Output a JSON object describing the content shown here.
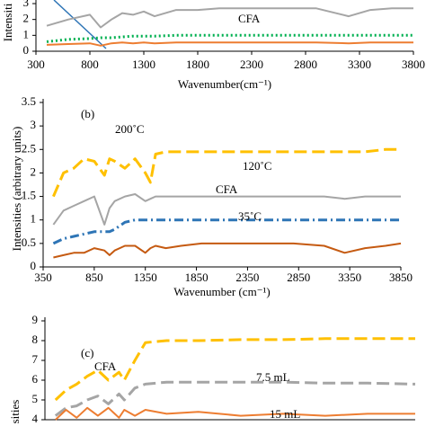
{
  "chart_data": [
    {
      "type": "line",
      "label": "Intensiti",
      "xlabel": "Wavenumber(cm⁻¹)",
      "annotations": [
        "CFA"
      ],
      "xlim": [
        300,
        3800
      ],
      "xticks": [
        300,
        800,
        1300,
        1800,
        2300,
        2800,
        3300,
        3800
      ],
      "ylim": [
        0,
        3
      ],
      "yticks": [
        0,
        1,
        2,
        3
      ],
      "x": [
        400,
        600,
        800,
        900,
        1000,
        1100,
        1200,
        1300,
        1400,
        1600,
        1800,
        2000,
        2300,
        2600,
        2900,
        3200,
        3400,
        3600,
        3800
      ],
      "series": [
        {
          "color": "#a5a5a5",
          "style": "solid",
          "values": [
            1.6,
            2.0,
            2.3,
            1.5,
            2.0,
            2.4,
            2.3,
            2.5,
            2.2,
            2.6,
            2.6,
            2.7,
            2.7,
            2.7,
            2.7,
            2.2,
            2.6,
            2.7,
            2.7
          ]
        },
        {
          "color": "#00b050",
          "style": "dotted",
          "values": [
            0.6,
            0.75,
            0.8,
            0.85,
            0.85,
            0.9,
            0.95,
            0.95,
            0.95,
            1.0,
            1.0,
            1.0,
            1.0,
            1.0,
            1.0,
            1.0,
            1.0,
            1.0,
            1.0
          ]
        },
        {
          "color": "#ed7d31",
          "style": "solid",
          "values": [
            0.4,
            0.45,
            0.5,
            0.35,
            0.5,
            0.55,
            0.5,
            0.55,
            0.5,
            0.55,
            0.55,
            0.55,
            0.55,
            0.55,
            0.55,
            0.5,
            0.55,
            0.55,
            0.55
          ]
        }
      ]
    },
    {
      "type": "line",
      "label": "(b)",
      "ylabel": "Intensities (arbitrary units)",
      "xlabel": "Wavenumber (cm⁻¹)",
      "annotations": [
        "200˚C",
        "120˚C",
        "CFA",
        "35˚C"
      ],
      "xlim": [
        350,
        3850
      ],
      "xticks": [
        350,
        850,
        1350,
        1850,
        2350,
        2850,
        3350,
        3850
      ],
      "ylim": [
        0,
        3.5
      ],
      "yticks": [
        0,
        0.5,
        1,
        1.5,
        2,
        2.5,
        3,
        3.5
      ],
      "x": [
        450,
        550,
        650,
        750,
        850,
        950,
        1000,
        1050,
        1150,
        1250,
        1350,
        1400,
        1450,
        1550,
        1700,
        1900,
        2200,
        2500,
        2800,
        3100,
        3300,
        3500,
        3700,
        3850
      ],
      "series": [
        {
          "color": "#ffc000",
          "style": "dashed",
          "values": [
            1.5,
            2.0,
            2.1,
            2.3,
            2.25,
            1.95,
            2.3,
            2.25,
            2.1,
            2.3,
            2.0,
            1.8,
            2.4,
            2.45,
            2.45,
            2.45,
            2.45,
            2.45,
            2.45,
            2.45,
            2.45,
            2.45,
            2.5,
            2.5
          ]
        },
        {
          "color": "#a5a5a5",
          "style": "solid",
          "values": [
            0.9,
            1.2,
            1.3,
            1.4,
            1.5,
            0.9,
            1.25,
            1.4,
            1.5,
            1.55,
            1.4,
            1.45,
            1.5,
            1.5,
            1.5,
            1.5,
            1.5,
            1.5,
            1.5,
            1.5,
            1.45,
            1.5,
            1.5,
            1.5
          ]
        },
        {
          "color": "#2e75b6",
          "style": "dash-dot",
          "values": [
            0.5,
            0.6,
            0.65,
            0.7,
            0.75,
            0.75,
            0.75,
            0.8,
            0.95,
            1.0,
            1.0,
            1.0,
            1.0,
            1.0,
            1.0,
            1.0,
            1.0,
            1.0,
            1.0,
            1.0,
            1.0,
            1.0,
            1.0,
            1.0
          ]
        },
        {
          "color": "#c55a11",
          "style": "solid",
          "values": [
            0.2,
            0.25,
            0.3,
            0.3,
            0.4,
            0.35,
            0.25,
            0.35,
            0.45,
            0.45,
            0.3,
            0.4,
            0.45,
            0.4,
            0.45,
            0.5,
            0.5,
            0.5,
            0.5,
            0.45,
            0.3,
            0.4,
            0.45,
            0.5
          ]
        }
      ]
    },
    {
      "type": "line",
      "label": "(c)",
      "ylabel": "sities",
      "annotations": [
        "CFA",
        "7.5 mL",
        "15 mL"
      ],
      "xlim": [
        350,
        3850
      ],
      "ylim": [
        4,
        9
      ],
      "yticks": [
        4,
        5,
        6,
        7,
        8,
        9
      ],
      "x": [
        450,
        550,
        650,
        750,
        850,
        950,
        1050,
        1100,
        1200,
        1300,
        1500,
        1800,
        2200,
        2600,
        3000,
        3400,
        3850
      ],
      "series": [
        {
          "color": "#ffc000",
          "style": "dashed",
          "values": [
            5.0,
            5.5,
            5.8,
            6.2,
            6.5,
            6.0,
            6.4,
            6.0,
            7.0,
            7.9,
            8.0,
            8.0,
            8.05,
            8.05,
            8.1,
            8.1,
            8.1
          ]
        },
        {
          "color": "#a5a5a5",
          "style": "dashed",
          "values": [
            4.2,
            4.6,
            4.7,
            5.0,
            5.2,
            4.8,
            5.3,
            5.0,
            5.6,
            5.8,
            5.9,
            5.9,
            5.9,
            5.9,
            5.85,
            5.85,
            5.8
          ]
        },
        {
          "color": "#ed7d31",
          "style": "solid",
          "values": [
            4.0,
            4.5,
            4.1,
            4.6,
            4.2,
            4.6,
            4.1,
            4.5,
            4.2,
            4.5,
            4.3,
            4.4,
            4.2,
            4.3,
            4.2,
            4.3,
            4.3
          ]
        }
      ]
    }
  ]
}
